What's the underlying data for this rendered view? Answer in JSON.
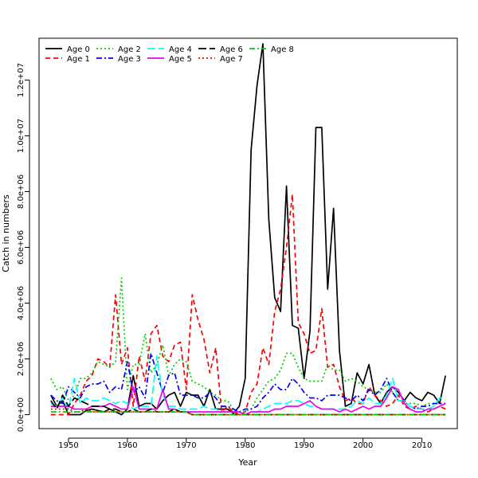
{
  "chart_data": {
    "type": "line",
    "title": "",
    "xlabel": "Year",
    "ylabel": "Catch in numbers",
    "xlim": [
      1945,
      2016
    ],
    "ylim": [
      -500000,
      13500000
    ],
    "x_ticks": [
      1950,
      1960,
      1970,
      1980,
      1990,
      2000,
      2010
    ],
    "y_ticks": [
      0,
      2000000,
      4000000,
      6000000,
      8000000,
      10000000,
      12000000
    ],
    "y_tick_labels": [
      "0.0e+00",
      "2.0e+06",
      "4.0e+06",
      "6.0e+06",
      "8.0e+06",
      "1.0e+07",
      "1.2e+07"
    ],
    "legend_position": "top-left",
    "x": [
      1947,
      1948,
      1949,
      1950,
      1951,
      1952,
      1953,
      1954,
      1955,
      1956,
      1957,
      1958,
      1959,
      1960,
      1961,
      1962,
      1963,
      1964,
      1965,
      1966,
      1967,
      1968,
      1969,
      1970,
      1971,
      1972,
      1973,
      1974,
      1975,
      1976,
      1977,
      1978,
      1979,
      1980,
      1981,
      1982,
      1983,
      1984,
      1985,
      1986,
      1987,
      1988,
      1989,
      1990,
      1991,
      1992,
      1993,
      1994,
      1995,
      1996,
      1997,
      1998,
      1999,
      2000,
      2001,
      2002,
      2003,
      2004,
      2005,
      2006,
      2007,
      2008,
      2009,
      2010,
      2011,
      2012,
      2013,
      2014
    ],
    "series": [
      {
        "name": "Age 0",
        "color": "#000000",
        "dash": "solid",
        "values": [
          700000,
          300000,
          500000,
          0,
          0,
          0,
          150000,
          200000,
          150000,
          100000,
          200000,
          100000,
          0,
          200000,
          1400000,
          300000,
          400000,
          400000,
          200000,
          500000,
          700000,
          800000,
          300000,
          800000,
          700000,
          700000,
          300000,
          900000,
          200000,
          200000,
          200000,
          50000,
          300000,
          1300000,
          9500000,
          11800000,
          13300000,
          7000000,
          4200000,
          3700000,
          8200000,
          3200000,
          3100000,
          1300000,
          3000000,
          10300000,
          10300000,
          4500000,
          7400000,
          2300000,
          300000,
          400000,
          1500000,
          1100000,
          1800000,
          700000,
          400000,
          800000,
          1000000,
          800000,
          500000,
          800000,
          600000,
          500000,
          800000,
          700000,
          400000,
          1400000
        ]
      },
      {
        "name": "Age 1",
        "color": "#ff0000",
        "dash": "6,4",
        "values": [
          0,
          0,
          0,
          0,
          400000,
          700000,
          1200000,
          1400000,
          2000000,
          1900000,
          1700000,
          4300000,
          1800000,
          2400000,
          300000,
          2100000,
          1200000,
          2900000,
          3200000,
          2100000,
          1900000,
          2500000,
          2600000,
          900000,
          4300000,
          3400000,
          2700000,
          1500000,
          2400000,
          100000,
          300000,
          100000,
          0,
          100000,
          800000,
          1100000,
          2400000,
          1800000,
          3700000,
          4500000,
          6000000,
          7900000,
          3300000,
          2900000,
          2200000,
          2300000,
          3800000,
          1700000,
          1800000,
          1000000,
          500000,
          600000,
          400000,
          400000,
          1000000,
          700000,
          500000,
          300000,
          400000,
          700000,
          300000,
          200000,
          300000,
          200000,
          100000,
          200000,
          300000,
          200000
        ]
      },
      {
        "name": "Age 2",
        "color": "#00cd00",
        "dash": "2,3",
        "values": [
          1300000,
          900000,
          1000000,
          500000,
          700000,
          1300000,
          1300000,
          1500000,
          1900000,
          1800000,
          1700000,
          1900000,
          4900000,
          900000,
          1800000,
          1800000,
          2900000,
          1500000,
          1800000,
          2500000,
          1400000,
          1800000,
          2000000,
          1900000,
          1200000,
          1100000,
          1000000,
          800000,
          700000,
          500000,
          500000,
          200000,
          100000,
          100000,
          200000,
          600000,
          900000,
          1200000,
          1300000,
          1600000,
          2200000,
          2200000,
          1700000,
          1300000,
          1200000,
          1200000,
          1200000,
          1800000,
          1600000,
          1600000,
          1200000,
          1300000,
          1200000,
          1000000,
          900000,
          800000,
          800000,
          1100000,
          800000,
          500000,
          400000,
          400000,
          400000,
          300000,
          400000,
          400000,
          400000,
          400000
        ]
      },
      {
        "name": "Age 3",
        "color": "#0000ff",
        "dash": "7,3,2,3",
        "values": [
          700000,
          500000,
          400000,
          1000000,
          800000,
          600000,
          1000000,
          1100000,
          1100000,
          1200000,
          800000,
          1000000,
          900000,
          1900000,
          800000,
          1000000,
          600000,
          2200000,
          1500000,
          800000,
          1400000,
          1500000,
          700000,
          700000,
          700000,
          600000,
          600000,
          800000,
          600000,
          300000,
          300000,
          200000,
          100000,
          200000,
          200000,
          300000,
          600000,
          800000,
          1100000,
          900000,
          900000,
          1300000,
          1100000,
          800000,
          600000,
          600000,
          500000,
          700000,
          700000,
          700000,
          600000,
          500000,
          700000,
          500000,
          900000,
          700000,
          900000,
          1300000,
          800000,
          500000,
          500000,
          300000,
          200000,
          300000,
          300000,
          400000,
          400000,
          400000
        ]
      },
      {
        "name": "Age 4",
        "color": "#00ffff",
        "dash": "10,4",
        "values": [
          400000,
          300000,
          600000,
          200000,
          1300000,
          400000,
          600000,
          500000,
          500000,
          600000,
          500000,
          400000,
          500000,
          400000,
          200000,
          300000,
          300000,
          300000,
          2100000,
          700000,
          300000,
          300000,
          200000,
          200000,
          200000,
          200000,
          300000,
          200000,
          200000,
          100000,
          100000,
          100000,
          100000,
          0,
          100000,
          100000,
          200000,
          300000,
          400000,
          400000,
          400000,
          500000,
          500000,
          400000,
          300000,
          300000,
          200000,
          200000,
          200000,
          200000,
          200000,
          300000,
          500000,
          400000,
          600000,
          400000,
          400000,
          700000,
          1300000,
          500000,
          500000,
          300000,
          200000,
          200000,
          200000,
          300000,
          600000,
          600000
        ]
      },
      {
        "name": "Age 5",
        "color": "#ee00ee",
        "dash": "solid",
        "values": [
          300000,
          300000,
          300000,
          300000,
          200000,
          200000,
          200000,
          300000,
          300000,
          300000,
          400000,
          300000,
          200000,
          200000,
          1000000,
          200000,
          200000,
          200000,
          200000,
          900000,
          200000,
          200000,
          100000,
          100000,
          100000,
          100000,
          100000,
          100000,
          100000,
          100000,
          100000,
          100000,
          100000,
          0,
          100000,
          100000,
          100000,
          100000,
          200000,
          200000,
          300000,
          300000,
          300000,
          400000,
          500000,
          300000,
          200000,
          200000,
          200000,
          100000,
          200000,
          100000,
          200000,
          300000,
          200000,
          300000,
          300000,
          600000,
          1000000,
          900000,
          400000,
          200000,
          100000,
          100000,
          200000,
          200000,
          300000,
          400000
        ]
      },
      {
        "name": "Age 6",
        "color": "#000000",
        "dash": "10,4",
        "values": [
          500000,
          200000,
          700000,
          300000,
          600000,
          500000,
          400000,
          300000,
          300000,
          300000,
          200000,
          200000,
          100000,
          100000,
          200000,
          100000,
          100000,
          200000,
          100000,
          100000,
          100000,
          200000,
          100000,
          100000,
          0,
          0,
          0,
          0,
          0,
          0,
          0,
          0,
          0,
          0,
          0,
          0,
          0,
          0,
          0,
          0,
          0,
          0,
          0,
          0,
          0,
          0,
          0,
          0,
          0,
          0,
          0,
          0,
          0,
          0,
          0,
          0,
          0,
          0,
          0,
          0,
          0,
          0,
          0,
          0,
          0,
          0,
          0,
          0
        ]
      },
      {
        "name": "Age 7",
        "color": "#ff0000",
        "dash": "2,3",
        "values": [
          200000,
          200000,
          200000,
          200000,
          100000,
          100000,
          200000,
          100000,
          100000,
          100000,
          100000,
          100000,
          100000,
          100000,
          100000,
          100000,
          100000,
          100000,
          100000,
          100000,
          100000,
          100000,
          100000,
          100000,
          0,
          0,
          0,
          0,
          0,
          0,
          0,
          0,
          0,
          0,
          0,
          0,
          0,
          0,
          0,
          0,
          0,
          0,
          0,
          0,
          0,
          0,
          0,
          0,
          0,
          0,
          0,
          0,
          0,
          0,
          0,
          0,
          0,
          0,
          0,
          0,
          0,
          0,
          0,
          0,
          0,
          0,
          0,
          0
        ]
      },
      {
        "name": "Age 8",
        "color": "#00cd00",
        "dash": "7,3,2,3",
        "values": [
          100000,
          100000,
          100000,
          100000,
          100000,
          100000,
          100000,
          100000,
          100000,
          100000,
          100000,
          100000,
          100000,
          100000,
          100000,
          100000,
          100000,
          100000,
          100000,
          100000,
          100000,
          100000,
          100000,
          100000,
          0,
          0,
          0,
          0,
          0,
          0,
          0,
          0,
          0,
          0,
          0,
          0,
          0,
          0,
          0,
          0,
          0,
          0,
          0,
          0,
          0,
          0,
          0,
          0,
          0,
          0,
          0,
          0,
          0,
          0,
          0,
          0,
          0,
          0,
          0,
          0,
          0,
          0,
          0,
          0,
          0,
          0,
          0,
          0
        ]
      }
    ]
  }
}
